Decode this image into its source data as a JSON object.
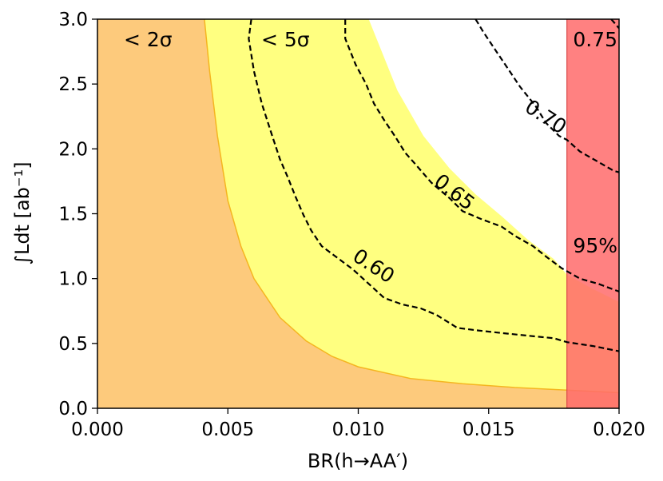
{
  "chart_data": {
    "type": "area",
    "xlabel": "BR(h→AA′)",
    "ylabel": "∫Ldt [ab⁻¹]",
    "xlim": [
      0.0,
      0.02
    ],
    "ylim": [
      0.0,
      3.0
    ],
    "xticks": [
      "0.000",
      "0.005",
      "0.010",
      "0.015",
      "0.020"
    ],
    "yticks": [
      "0.0",
      "0.5",
      "1.0",
      "1.5",
      "2.0",
      "2.5",
      "3.0"
    ],
    "grid": false,
    "regions": [
      {
        "label": "< 2σ",
        "color": "#fdca7c",
        "boundary_color": "#f5b520",
        "boundary": {
          "x": [
            0.0041,
            0.0043,
            0.0046,
            0.005,
            0.0055,
            0.006,
            0.007,
            0.008,
            0.009,
            0.01,
            0.012,
            0.014,
            0.016,
            0.018,
            0.02
          ],
          "y": [
            3.0,
            2.6,
            2.1,
            1.6,
            1.25,
            1.0,
            0.7,
            0.52,
            0.4,
            0.32,
            0.23,
            0.19,
            0.16,
            0.14,
            0.12
          ]
        }
      },
      {
        "label": "< 5σ",
        "color": "#ffff80",
        "boundary": {
          "x": [
            0.0104,
            0.0115,
            0.0125,
            0.0135,
            0.0145,
            0.0155,
            0.0165,
            0.0175,
            0.018,
            0.019,
            0.02
          ],
          "y": [
            3.0,
            2.45,
            2.1,
            1.85,
            1.65,
            1.48,
            1.3,
            1.15,
            1.03,
            0.92,
            0.82
          ]
        }
      },
      {
        "label": "95%",
        "color": "#ff6b6b",
        "alpha": 0.85,
        "x_range": [
          0.018,
          0.02
        ]
      }
    ],
    "contours": [
      {
        "label": "0.60",
        "x": [
          0.0059,
          0.0058,
          0.006,
          0.0063,
          0.0067,
          0.007,
          0.0073,
          0.0076,
          0.0079,
          0.0082,
          0.0086,
          0.0092,
          0.0098,
          0.0104,
          0.011,
          0.0117,
          0.0124,
          0.013,
          0.0138,
          0.0146,
          0.0155,
          0.0165,
          0.0175,
          0.018,
          0.019,
          0.02
        ],
        "y": [
          3.0,
          2.85,
          2.6,
          2.35,
          2.1,
          1.92,
          1.78,
          1.63,
          1.49,
          1.37,
          1.25,
          1.16,
          1.07,
          0.96,
          0.85,
          0.8,
          0.77,
          0.72,
          0.62,
          0.6,
          0.58,
          0.56,
          0.54,
          0.51,
          0.48,
          0.44
        ]
      },
      {
        "label": "0.65",
        "x": [
          0.0095,
          0.0095,
          0.0099,
          0.0103,
          0.0106,
          0.011,
          0.0114,
          0.0118,
          0.0122,
          0.0128,
          0.0135,
          0.014,
          0.0147,
          0.0155,
          0.016,
          0.0167,
          0.0172,
          0.0178,
          0.0185,
          0.0192,
          0.02
        ],
        "y": [
          3.0,
          2.85,
          2.65,
          2.5,
          2.35,
          2.22,
          2.1,
          1.97,
          1.88,
          1.74,
          1.62,
          1.52,
          1.46,
          1.4,
          1.33,
          1.25,
          1.17,
          1.08,
          1.0,
          0.96,
          0.9
        ]
      },
      {
        "label": "0.70",
        "x": [
          0.0145,
          0.0148,
          0.0153,
          0.0158,
          0.0162,
          0.0168,
          0.0172,
          0.0177,
          0.018,
          0.0185,
          0.0192,
          0.0198,
          0.02
        ],
        "y": [
          3.0,
          2.9,
          2.75,
          2.6,
          2.48,
          2.33,
          2.2,
          2.1,
          2.07,
          1.98,
          1.9,
          1.83,
          1.82
        ]
      },
      {
        "label": "0.75",
        "x": [
          0.0197,
          0.02
        ],
        "y": [
          3.0,
          2.93
        ]
      }
    ],
    "annotations": [
      {
        "text": "< 2σ"
      },
      {
        "text": "< 5σ"
      },
      {
        "text": "0.75"
      },
      {
        "text": "95%"
      }
    ]
  }
}
